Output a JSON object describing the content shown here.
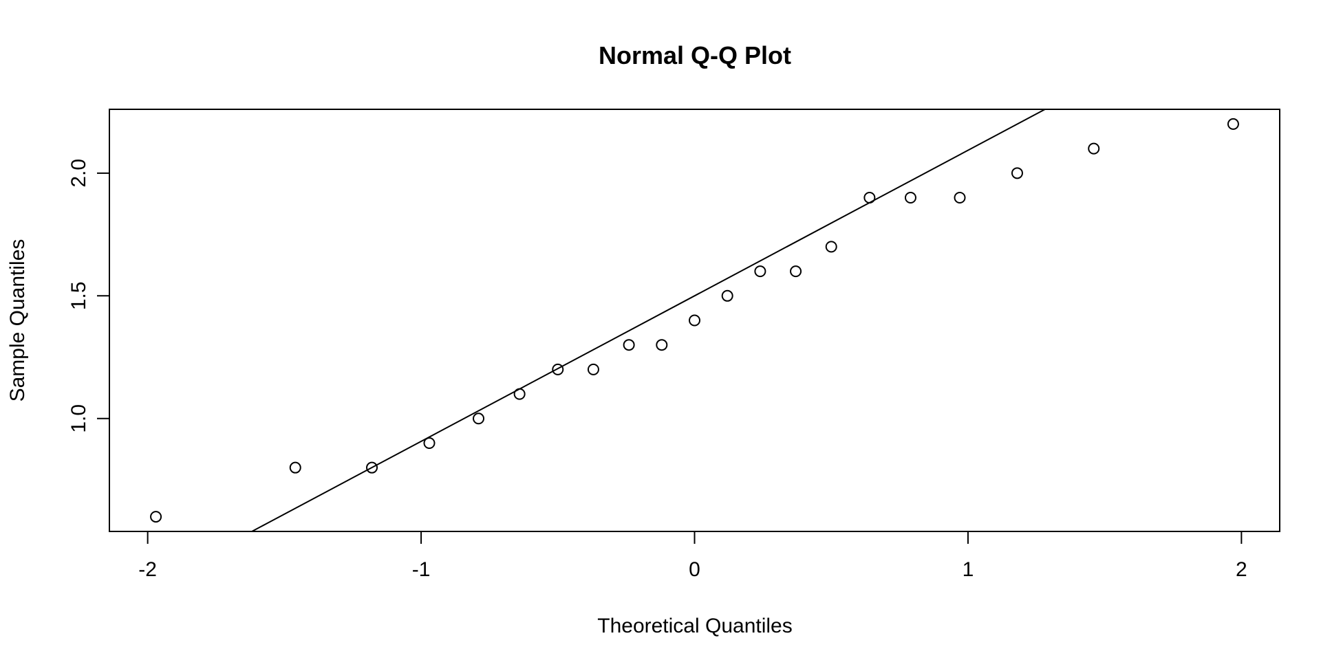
{
  "chart_data": {
    "type": "scatter",
    "title": "Normal Q-Q Plot",
    "xlabel": "Theoretical Quantiles",
    "ylabel": "Sample Quantiles",
    "xlim": [
      -2.14,
      2.14
    ],
    "ylim": [
      0.54,
      2.26
    ],
    "xticks": [
      {
        "value": -2,
        "label": "-2"
      },
      {
        "value": -1,
        "label": "-1"
      },
      {
        "value": 0,
        "label": "0"
      },
      {
        "value": 1,
        "label": "1"
      },
      {
        "value": 2,
        "label": "2"
      }
    ],
    "yticks": [
      {
        "value": 1.0,
        "label": "1.0"
      },
      {
        "value": 1.5,
        "label": "1.5"
      },
      {
        "value": 2.0,
        "label": "2.0"
      }
    ],
    "grid": false,
    "legend": "none",
    "points": [
      {
        "x": -1.97,
        "y": 0.6
      },
      {
        "x": -1.46,
        "y": 0.8
      },
      {
        "x": -1.18,
        "y": 0.8
      },
      {
        "x": -0.97,
        "y": 0.9
      },
      {
        "x": -0.79,
        "y": 1.0
      },
      {
        "x": -0.64,
        "y": 1.1
      },
      {
        "x": -0.5,
        "y": 1.2
      },
      {
        "x": -0.37,
        "y": 1.2
      },
      {
        "x": -0.24,
        "y": 1.3
      },
      {
        "x": -0.12,
        "y": 1.3
      },
      {
        "x": 0.0,
        "y": 1.4
      },
      {
        "x": 0.12,
        "y": 1.5
      },
      {
        "x": 0.24,
        "y": 1.6
      },
      {
        "x": 0.37,
        "y": 1.6
      },
      {
        "x": 0.5,
        "y": 1.7
      },
      {
        "x": 0.64,
        "y": 1.9
      },
      {
        "x": 0.79,
        "y": 1.9
      },
      {
        "x": 0.97,
        "y": 1.9
      },
      {
        "x": 1.18,
        "y": 2.0
      },
      {
        "x": 1.46,
        "y": 2.1
      },
      {
        "x": 1.97,
        "y": 2.2
      }
    ],
    "reference_line": {
      "intercept": 1.5,
      "slope": 0.593
    }
  }
}
